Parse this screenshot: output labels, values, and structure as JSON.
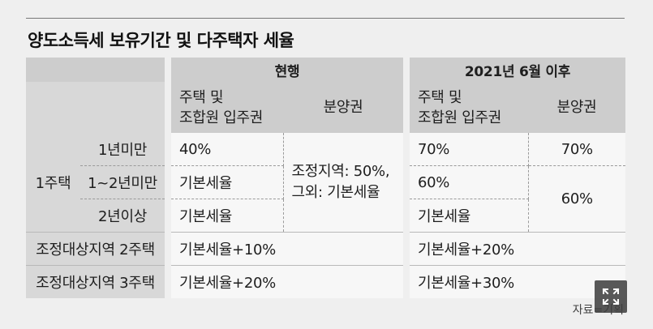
{
  "title": "양도소득세 보유기간 및 다주택자 세율",
  "headers": {
    "current": "현행",
    "after": "2021년 6월 이후",
    "housing_line1": "주택 및",
    "housing_line2": "조합원 입주권",
    "presale": "분양권"
  },
  "rows": {
    "one_house": "1주택",
    "under1": "1년미만",
    "one_to_two": "1~2년미만",
    "over2": "2년이상",
    "two_house": "조정대상지역 2주택",
    "three_house": "조정대상지역 3주택"
  },
  "values": {
    "cur_under1": "40%",
    "cur_1to2": "기본세율",
    "cur_over2": "기본세율",
    "cur_presale_line1": "조정지역: 50%,",
    "cur_presale_line2": "그외: 기본세율",
    "new_under1": "70%",
    "new_1to2": "60%",
    "new_over2": "기본세율",
    "new_presale_under1": "70%",
    "new_presale_1plus": "60%",
    "cur_two": "기본세율+10%",
    "cur_three": "기본세율+20%",
    "new_two": "기본세율+20%",
    "new_three": "기본세율+30%"
  },
  "source": "자료=기획",
  "icons": {
    "expand": "expand-icon"
  }
}
